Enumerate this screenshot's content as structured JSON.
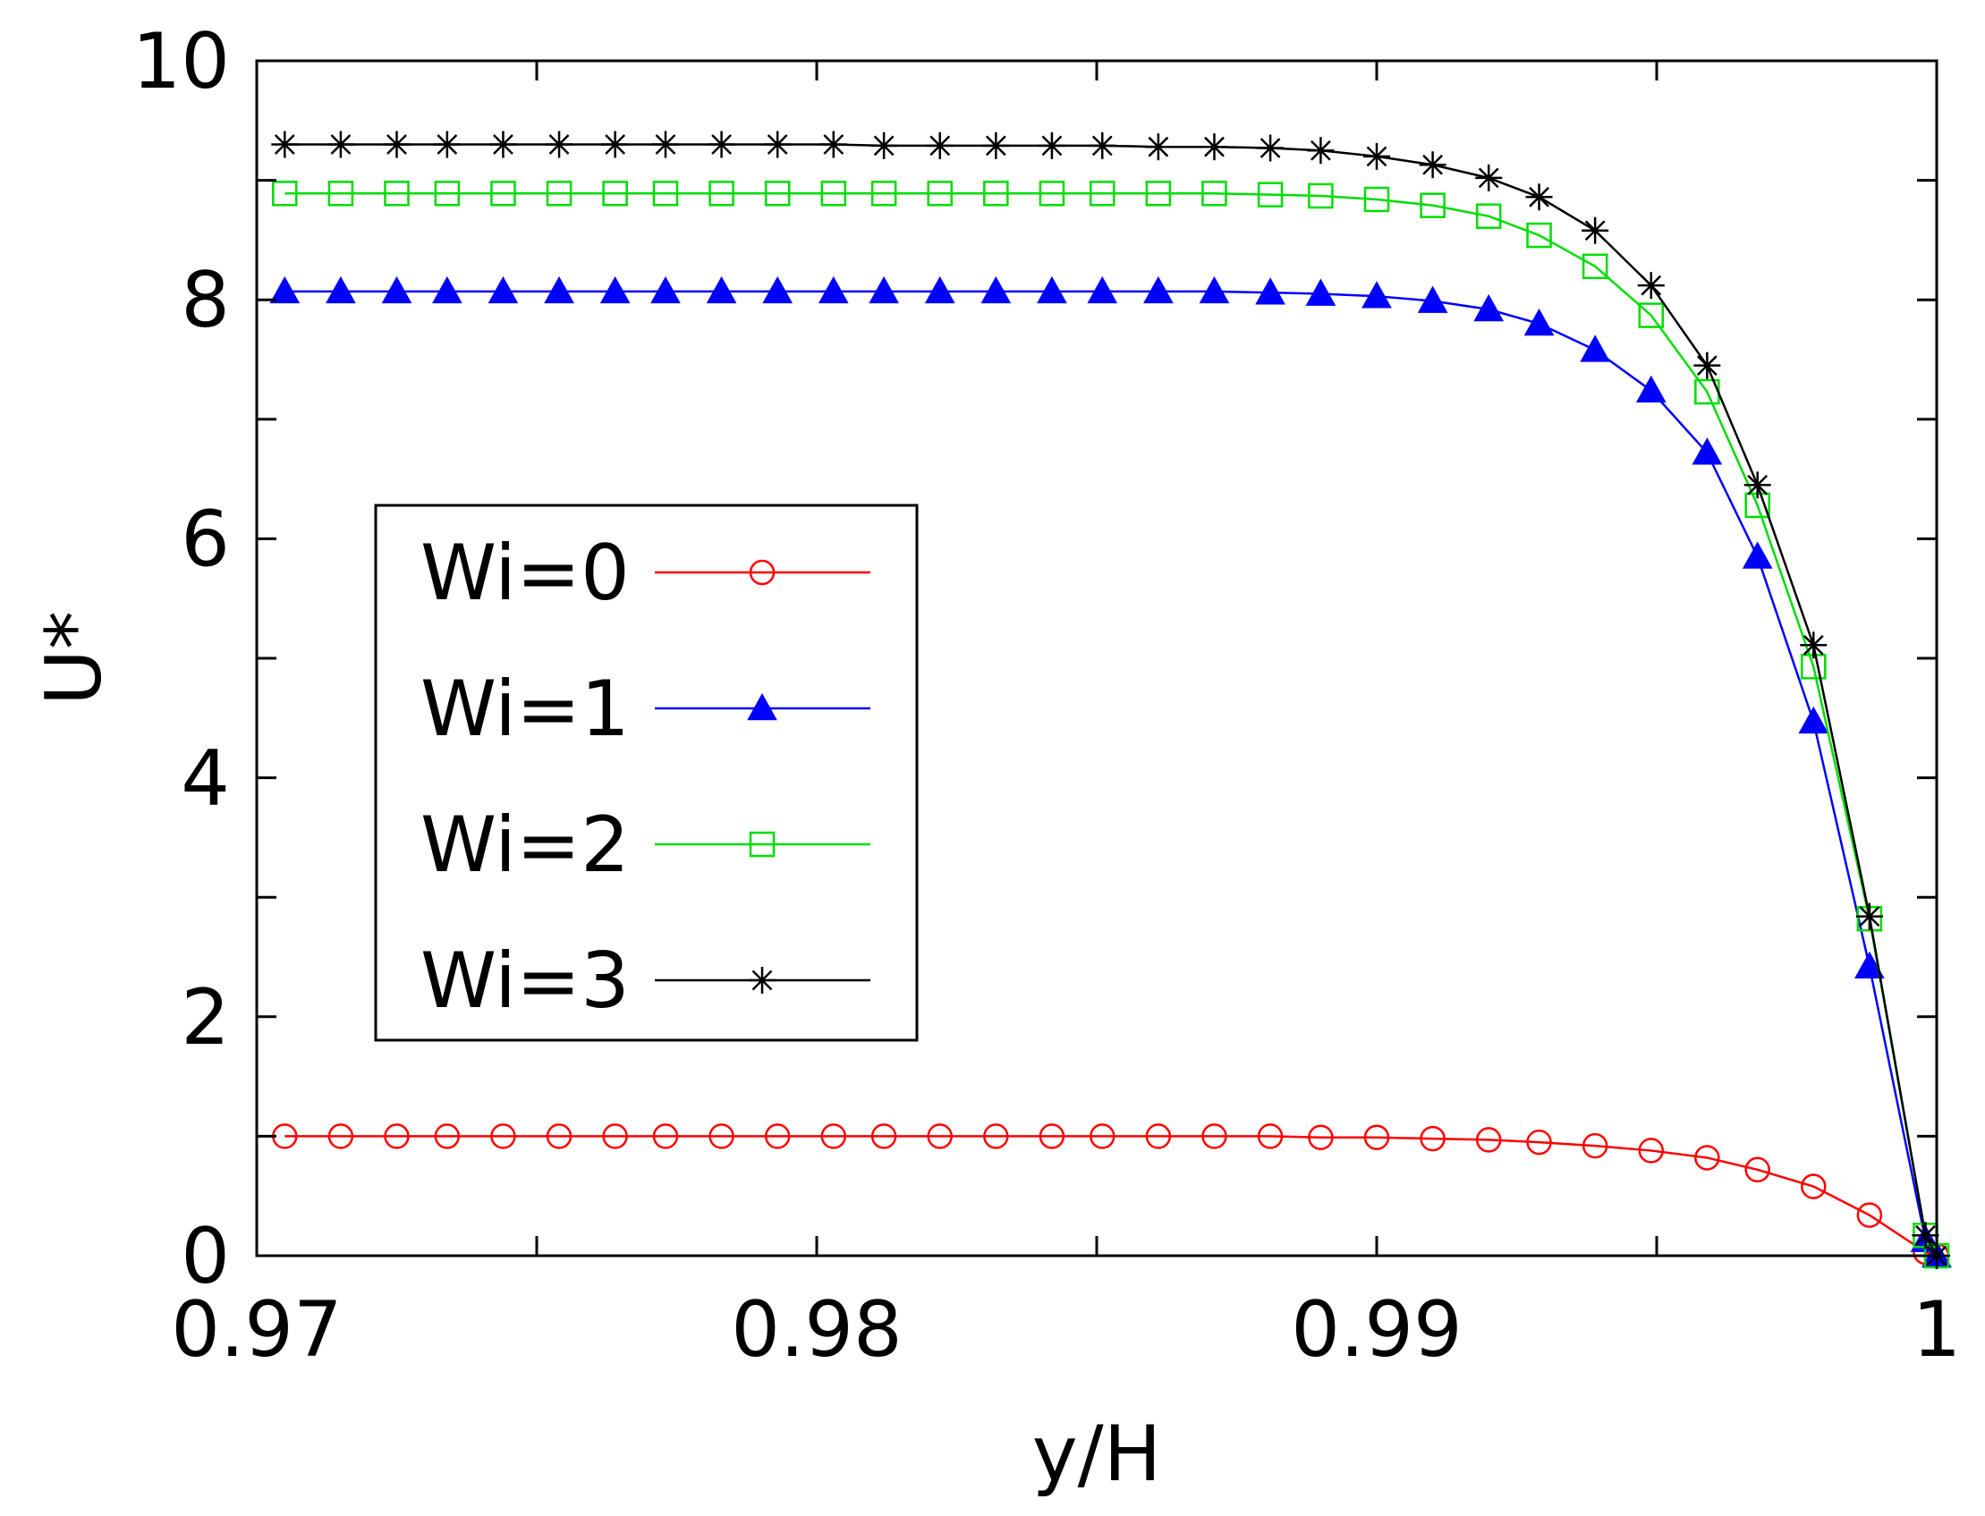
{
  "chart_data": {
    "type": "line",
    "title": "",
    "xlabel": "y/H",
    "ylabel": "U*",
    "xlim": [
      0.97,
      1.0
    ],
    "ylim": [
      0,
      10
    ],
    "x_ticks": [
      0.97,
      0.98,
      0.99,
      1.0
    ],
    "x_tick_labels": [
      "0.97",
      "0.98",
      "0.99",
      "1"
    ],
    "y_ticks": [
      0,
      2,
      4,
      6,
      8,
      10
    ],
    "y_tick_labels": [
      "0",
      "2",
      "4",
      "6",
      "8",
      "10"
    ],
    "grid": false,
    "legend_position": "center-left",
    "x": [
      0.9705,
      0.9715,
      0.9725,
      0.9734,
      0.9744,
      0.9754,
      0.9764,
      0.9773,
      0.9783,
      0.9793,
      0.9803,
      0.9812,
      0.9822,
      0.9832,
      0.9842,
      0.9851,
      0.9861,
      0.9871,
      0.9881,
      0.989,
      0.99,
      0.991,
      0.992,
      0.9929,
      0.9939,
      0.9949,
      0.9959,
      0.9968,
      0.9978,
      0.9988,
      0.9998,
      1.0
    ],
    "series": [
      {
        "name": "Wi=0",
        "color": "#ff0000",
        "marker": "open-circle",
        "values": [
          1.0,
          1.0,
          1.0,
          1.0,
          1.0,
          1.0,
          1.0,
          1.0,
          1.0,
          1.0,
          1.0,
          1.0,
          1.0,
          1.0,
          1.0,
          1.0,
          1.0,
          1.0,
          1.0,
          0.99,
          0.99,
          0.98,
          0.97,
          0.95,
          0.92,
          0.88,
          0.82,
          0.72,
          0.58,
          0.34,
          0.03,
          0.0
        ]
      },
      {
        "name": "Wi=1",
        "color": "#0000ff",
        "marker": "filled-triangle",
        "values": [
          8.07,
          8.07,
          8.07,
          8.07,
          8.07,
          8.07,
          8.07,
          8.07,
          8.07,
          8.07,
          8.07,
          8.07,
          8.07,
          8.07,
          8.07,
          8.07,
          8.07,
          8.07,
          8.06,
          8.05,
          8.03,
          7.99,
          7.92,
          7.8,
          7.58,
          7.24,
          6.72,
          5.85,
          4.47,
          2.42,
          0.13,
          0.0
        ]
      },
      {
        "name": "Wi=2",
        "color": "#00dd00",
        "marker": "open-square",
        "values": [
          8.89,
          8.89,
          8.89,
          8.89,
          8.89,
          8.89,
          8.89,
          8.89,
          8.89,
          8.89,
          8.89,
          8.89,
          8.89,
          8.89,
          8.89,
          8.89,
          8.89,
          8.89,
          8.88,
          8.87,
          8.84,
          8.79,
          8.7,
          8.54,
          8.28,
          7.87,
          7.23,
          6.28,
          4.93,
          2.82,
          0.17,
          0.0
        ]
      },
      {
        "name": "Wi=3",
        "color": "#000000",
        "marker": "asterisk",
        "values": [
          9.3,
          9.3,
          9.3,
          9.3,
          9.3,
          9.3,
          9.3,
          9.3,
          9.3,
          9.3,
          9.3,
          9.29,
          9.29,
          9.29,
          9.29,
          9.29,
          9.28,
          9.28,
          9.27,
          9.25,
          9.2,
          9.13,
          9.02,
          8.86,
          8.58,
          8.12,
          7.45,
          6.45,
          5.11,
          2.84,
          0.17,
          0.0
        ]
      }
    ]
  }
}
